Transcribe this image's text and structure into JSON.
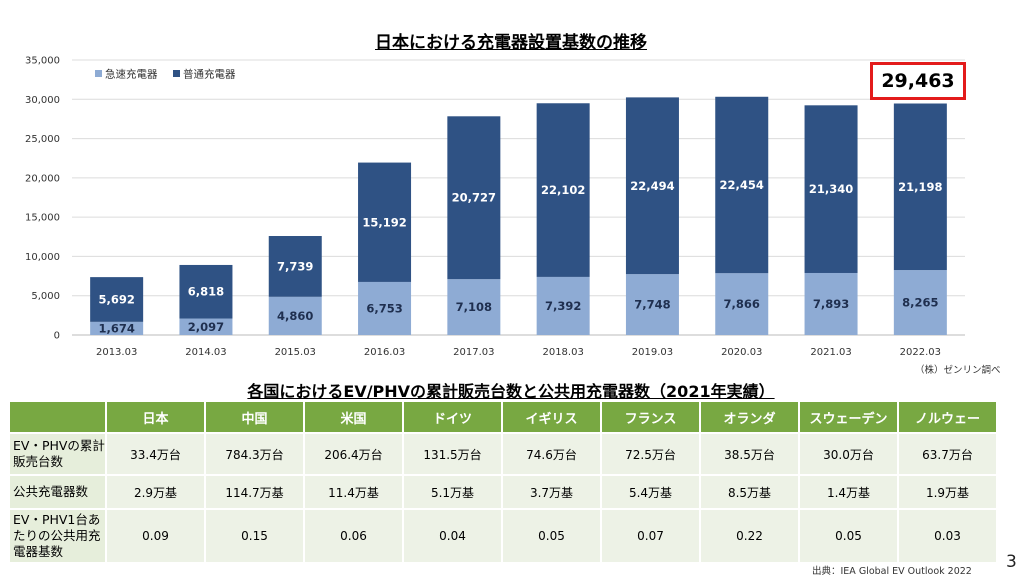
{
  "chart_data": {
    "type": "bar",
    "stacked": true,
    "title": "日本における充電器設置基数の推移",
    "categories": [
      "2013.03",
      "2014.03",
      "2015.03",
      "2016.03",
      "2017.03",
      "2018.03",
      "2019.03",
      "2020.03",
      "2021.03",
      "2022.03"
    ],
    "series": [
      {
        "name": "急速充電器",
        "color": "#8eabd4",
        "values": [
          1674,
          2097,
          4860,
          6753,
          7108,
          7392,
          7748,
          7866,
          7893,
          8265
        ],
        "labels": [
          "1,674",
          "2,097",
          "4,860",
          "6,753",
          "7,108",
          "7,392",
          "7,748",
          "7,866",
          "7,893",
          "8,265"
        ]
      },
      {
        "name": "普通充電器",
        "color": "#2f5284",
        "values": [
          5692,
          6818,
          7739,
          15192,
          20727,
          22102,
          22494,
          22454,
          21340,
          21198
        ],
        "labels": [
          "5,692",
          "6,818",
          "7,739",
          "15,192",
          "20,727",
          "22,102",
          "22,494",
          "22,454",
          "21,340",
          "21,198"
        ]
      }
    ],
    "ylim": [
      0,
      35000
    ],
    "yticks": [
      "0",
      "5,000",
      "10,000",
      "15,000",
      "20,000",
      "25,000",
      "30,000",
      "35,000"
    ],
    "ytick_values": [
      0,
      5000,
      10000,
      15000,
      20000,
      25000,
      30000,
      35000
    ],
    "xlabel": "",
    "ylabel": "",
    "grid": true,
    "legend_position": "top-left",
    "highlight_total": "29,463",
    "source_note": "（株）ゼンリン調べ"
  },
  "table": {
    "title": "各国におけるEV/PHVの累計販売台数と公共用充電器数（2021年実績）",
    "columns": [
      "日本",
      "中国",
      "米国",
      "ドイツ",
      "イギリス",
      "フランス",
      "オランダ",
      "スウェーデン",
      "ノルウェー"
    ],
    "rows": [
      {
        "header": "EV・PHVの累計販売台数",
        "cells": [
          "33.4万台",
          "784.3万台",
          "206.4万台",
          "131.5万台",
          "74.6万台",
          "72.5万台",
          "38.5万台",
          "30.0万台",
          "63.7万台"
        ]
      },
      {
        "header": "公共充電器数",
        "cells": [
          "2.9万基",
          "114.7万基",
          "11.4万基",
          "5.1万基",
          "3.7万基",
          "5.4万基",
          "8.5万基",
          "1.4万基",
          "1.9万基"
        ]
      },
      {
        "header": "EV・PHV1台あたりの公共用充電器基数",
        "cells": [
          "0.09",
          "0.15",
          "0.06",
          "0.04",
          "0.05",
          "0.07",
          "0.22",
          "0.05",
          "0.03"
        ]
      }
    ],
    "header_color": "#78a842",
    "cell_color": "#edf2e6"
  },
  "footer": {
    "source": "出典：IEA  Global EV Outlook 2022",
    "page_number": "3"
  }
}
